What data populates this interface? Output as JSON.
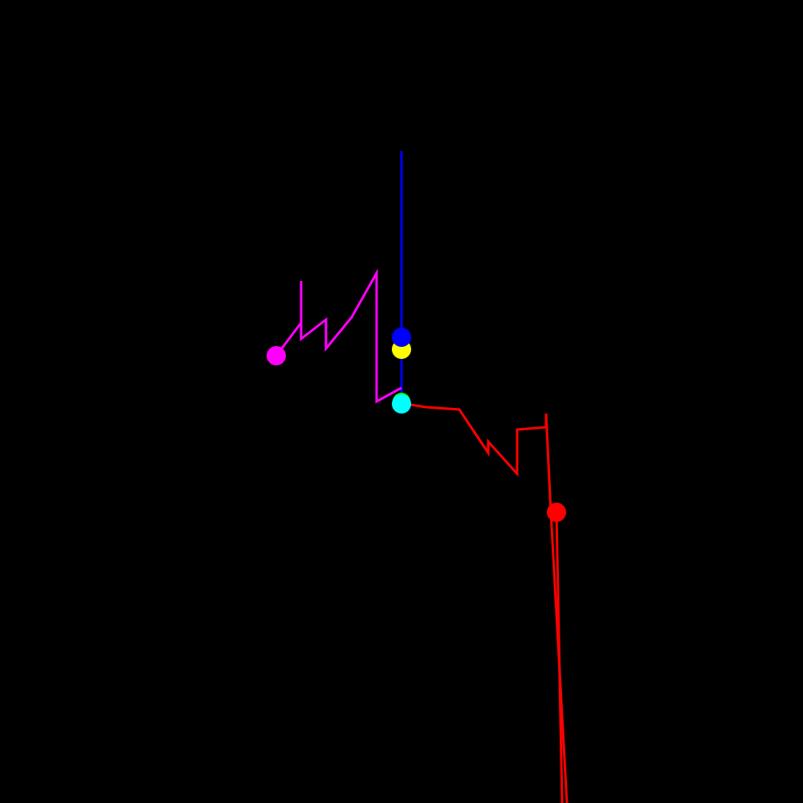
{
  "scene": {
    "background": "#000000"
  },
  "agents": [
    {
      "id": "blue",
      "color": "#0000ff"
    },
    {
      "id": "magenta",
      "color": "#ff00ff"
    },
    {
      "id": "red",
      "color": "#ff0000"
    },
    {
      "id": "yellow",
      "color": "#ffff00"
    },
    {
      "id": "green",
      "color": "#00ff00"
    },
    {
      "id": "cyan",
      "color": "#00ffff"
    }
  ]
}
